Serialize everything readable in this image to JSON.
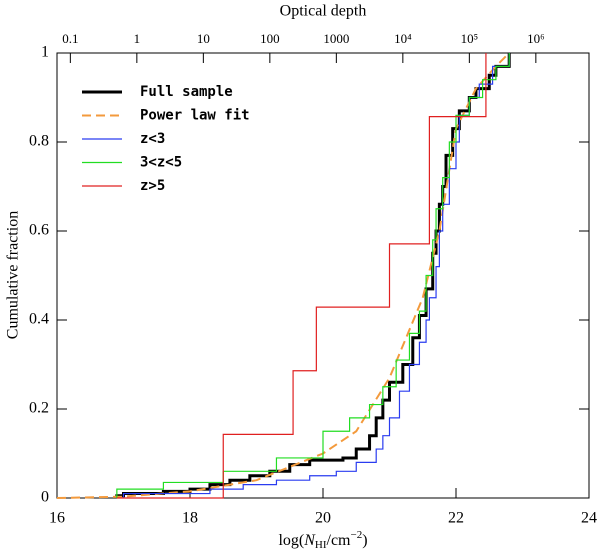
{
  "chart_data": {
    "type": "line",
    "xlabel": [
      "log(",
      "N",
      "HI",
      "/cm",
      "−2",
      ")"
    ],
    "ylabel": "Cumulative fraction",
    "x2label": "Optical depth",
    "xlim": [
      16,
      24
    ],
    "xticks": [
      16,
      18,
      20,
      22,
      24
    ],
    "ylim": [
      0,
      1
    ],
    "yticks": [
      0,
      0.2,
      0.4,
      0.6,
      0.8,
      1
    ],
    "x2lim": [
      0.063,
      6300000
    ],
    "x2scale": "log",
    "x2ticks": [
      0.1,
      1,
      10,
      100,
      1000,
      {
        "value": 10000,
        "label": "10⁴"
      },
      {
        "value": 100000,
        "label": "10⁵"
      },
      {
        "value": 1000000,
        "label": "10⁶"
      }
    ],
    "legend": "upper left",
    "series": [
      {
        "name": "Full sample",
        "color": "#000000",
        "linewidth": 3,
        "drawstyle": "steps",
        "x": [
          16.9,
          17.0,
          17.6,
          18.0,
          18.3,
          18.6,
          18.9,
          19.2,
          19.5,
          19.8,
          20.3,
          20.5,
          20.7,
          20.8,
          20.9,
          21.0,
          21.2,
          21.35,
          21.45,
          21.55,
          21.65,
          21.7,
          21.75,
          21.8,
          21.85,
          21.95,
          22.05,
          22.2,
          22.3,
          22.5,
          22.6,
          22.8
        ],
        "values": [
          0.005,
          0.01,
          0.015,
          0.02,
          0.03,
          0.04,
          0.05,
          0.06,
          0.075,
          0.085,
          0.09,
          0.11,
          0.14,
          0.18,
          0.22,
          0.26,
          0.3,
          0.36,
          0.41,
          0.47,
          0.55,
          0.6,
          0.66,
          0.7,
          0.77,
          0.83,
          0.87,
          0.9,
          0.92,
          0.95,
          0.97,
          1.0
        ]
      },
      {
        "name": "Power law fit",
        "color": "#f39a3c",
        "linewidth": 2,
        "dash": true,
        "drawstyle": "smooth",
        "x": [
          16,
          17,
          18,
          19,
          20,
          20.5,
          21,
          21.5,
          21.75,
          22,
          22.3,
          22.6,
          22.8
        ],
        "values": [
          0,
          0.003,
          0.015,
          0.04,
          0.1,
          0.15,
          0.27,
          0.45,
          0.6,
          0.83,
          0.92,
          0.97,
          1.0
        ]
      },
      {
        "name": "z<3",
        "color": "#2a3cf0",
        "linewidth": 1.2,
        "drawstyle": "steps",
        "x": [
          17.0,
          18.3,
          18.8,
          19.3,
          19.8,
          20.2,
          20.5,
          20.8,
          20.9,
          21.0,
          21.15,
          21.3,
          21.45,
          21.55,
          21.6,
          21.7,
          21.75,
          21.8,
          21.9,
          22.0,
          22.05,
          22.2,
          22.35,
          22.55,
          22.8
        ],
        "values": [
          0.01,
          0.02,
          0.03,
          0.04,
          0.05,
          0.06,
          0.08,
          0.11,
          0.14,
          0.18,
          0.24,
          0.3,
          0.35,
          0.4,
          0.45,
          0.52,
          0.6,
          0.66,
          0.74,
          0.8,
          0.86,
          0.9,
          0.93,
          0.97,
          1.0
        ]
      },
      {
        "name": "3<z<5",
        "color": "#22dd22",
        "linewidth": 1.2,
        "drawstyle": "steps",
        "x": [
          16.9,
          17.6,
          18.5,
          19.3,
          20.0,
          20.4,
          20.7,
          20.9,
          21.1,
          21.3,
          21.45,
          21.55,
          21.65,
          21.7,
          21.8,
          21.9,
          22.0,
          22.2,
          22.4,
          22.6,
          22.8
        ],
        "values": [
          0.02,
          0.035,
          0.06,
          0.09,
          0.15,
          0.18,
          0.21,
          0.25,
          0.31,
          0.37,
          0.42,
          0.5,
          0.58,
          0.65,
          0.72,
          0.8,
          0.86,
          0.9,
          0.94,
          0.97,
          1.0
        ]
      },
      {
        "name": "z>5",
        "color": "#e02020",
        "linewidth": 1.2,
        "drawstyle": "steps",
        "x": [
          16.9,
          18.5,
          19.55,
          19.9,
          21.0,
          21.6,
          22.45
        ],
        "values": [
          0,
          0.143,
          0.286,
          0.429,
          0.571,
          0.857,
          1.0
        ]
      }
    ]
  }
}
